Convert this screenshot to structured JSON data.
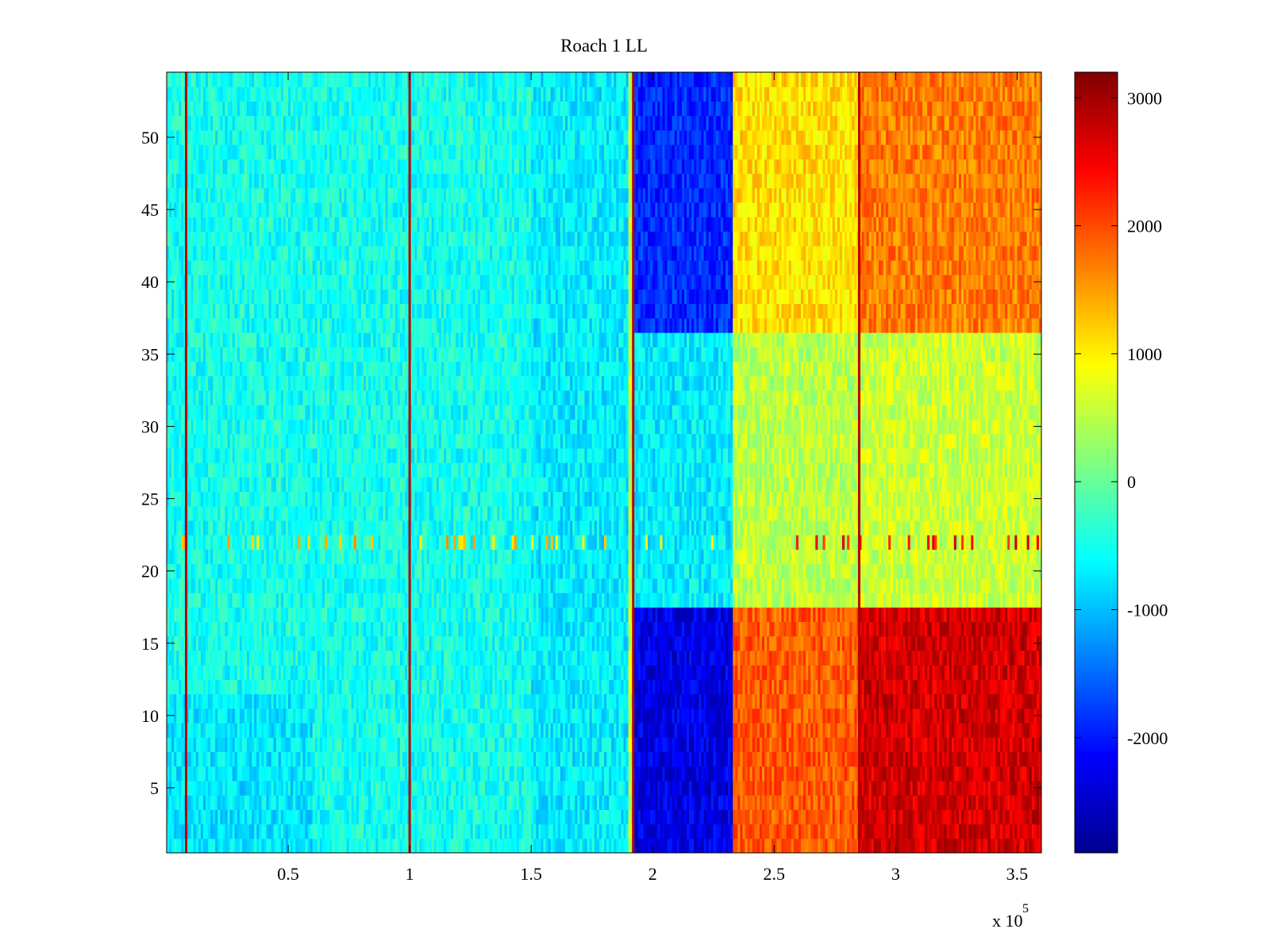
{
  "chart_data": {
    "type": "heatmap",
    "title": "Roach 1 LL",
    "xlabel": "",
    "ylabel": "",
    "x_range": [
      0,
      360000
    ],
    "y_range": [
      0.5,
      54.5
    ],
    "x_ticks": [
      50000,
      100000,
      150000,
      200000,
      250000,
      300000,
      350000
    ],
    "x_tick_labels": [
      "0.5",
      "1",
      "1.5",
      "2",
      "2.5",
      "3",
      "3.5"
    ],
    "x_exponent_label": "x 10",
    "x_exponent_power": "5",
    "y_ticks": [
      5,
      10,
      15,
      20,
      25,
      30,
      35,
      40,
      45,
      50
    ],
    "y_tick_labels": [
      "5",
      "10",
      "15",
      "20",
      "25",
      "30",
      "35",
      "40",
      "45",
      "50"
    ],
    "colorbar": {
      "colormap": "jet",
      "range": [
        -2900,
        3200
      ],
      "ticks": [
        -2000,
        -1000,
        0,
        1000,
        2000,
        3000
      ],
      "tick_labels": [
        "-2000",
        "-1000",
        "0",
        "1000",
        "2000",
        "3000"
      ]
    },
    "rows": 54,
    "segments": [
      {
        "x_start": 0,
        "x_end": 190000,
        "mean_value": -500,
        "note_rows": "all"
      },
      {
        "x_start": 192000,
        "x_end": 233000,
        "mean_value_rows_1_17": -2300,
        "mean_value_rows_18_36": -700,
        "mean_value_rows_37_54": -1900
      },
      {
        "x_start": 233000,
        "x_end": 285000,
        "mean_value_rows_1_17": 1900,
        "mean_value_rows_18_36": 500,
        "mean_value_rows_37_54": 1100
      },
      {
        "x_start": 285000,
        "x_end": 360000,
        "mean_value_rows_1_17": 2700,
        "mean_value_rows_18_36": 600,
        "mean_value_rows_37_54": 1700
      }
    ],
    "vertical_lines_x": [
      8000,
      100000,
      192000,
      285000
    ],
    "grid": false,
    "legend": "none"
  }
}
